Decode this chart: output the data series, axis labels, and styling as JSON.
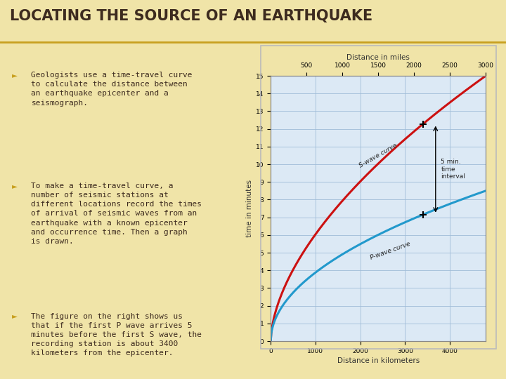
{
  "title": "LOCATING THE SOURCE OF AN EARTHQUAKE",
  "title_color": "#3d2b1f",
  "title_underline_color": "#c8a020",
  "bg_color": "#f0e4a8",
  "bullet_color": "#c8a020",
  "text_color": "#3d2b1f",
  "bullets": [
    "Geologists use a time-travel curve\nto calculate the distance between\nan earthquake epicenter and a\nseismograph.",
    "To make a time-travel curve, a\nnumber of seismic stations at\ndifferent locations record the times\nof arrival of seismic waves from an\nearthquake with a known epicenter\nand occurrence time. Then a graph\nis drawn.",
    "The figure on the right shows us\nthat if the first P wave arrives 5\nminutes before the first S wave, the\nrecording station is about 3400\nkilometers from the epicenter."
  ],
  "chart_bg": "#dce9f5",
  "chart_grid_color": "#a0bcd8",
  "s_wave_color": "#cc1111",
  "p_wave_color": "#2299cc",
  "xlabel": "Distance in kilometers",
  "ylabel": "time in minutes",
  "top_xlabel": "Distance in miles",
  "xlim_km": [
    0,
    4800
  ],
  "ylim": [
    0,
    15
  ],
  "yticks": [
    0,
    1,
    2,
    3,
    4,
    5,
    6,
    7,
    8,
    9,
    10,
    11,
    12,
    13,
    14,
    15
  ],
  "xticks_km": [
    0,
    1000,
    2000,
    3000,
    4000
  ],
  "xticks_miles": [
    500,
    1000,
    1500,
    2000,
    2500,
    3000
  ],
  "s_wave_label": "S-wave curve",
  "p_wave_label": "P-wave curve",
  "interval_label": "5 min.\ntime\ninterval",
  "marker_x_km": 3400
}
